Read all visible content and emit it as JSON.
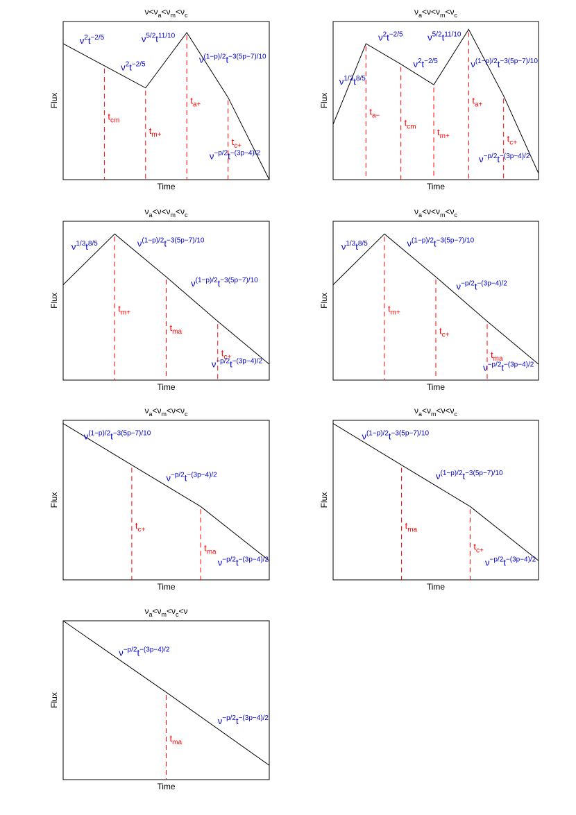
{
  "chart_data": [
    {
      "type": "line",
      "title": {
        "base": [
          "ν<ν",
          "<ν",
          "<ν"
        ],
        "subs": [
          "a",
          "m",
          "c"
        ]
      },
      "xlabel": "Time",
      "ylabel": "Flux",
      "xlim": [
        0,
        1
      ],
      "ylim": [
        0,
        1
      ],
      "x": [
        0,
        0.2,
        0.4,
        0.6,
        0.8,
        1.0
      ],
      "y": [
        0.86,
        0.72,
        0.58,
        0.93,
        0.52,
        0.0
      ],
      "vlines": [
        {
          "x": 0.2,
          "label": "t",
          "sub": "cm",
          "label_y": 0.38
        },
        {
          "x": 0.4,
          "label": "t",
          "sub": "m+",
          "label_y": 0.29
        },
        {
          "x": 0.6,
          "label": "t",
          "sub": "a+",
          "label_y": 0.48
        },
        {
          "x": 0.8,
          "label": "t",
          "sub": "c+",
          "label_y": 0.22
        }
      ],
      "segment_labels": [
        {
          "x": 0.08,
          "y": 0.86,
          "base": "ν",
          "sup1": "2",
          "mid": "t",
          "sup2": "−2/5"
        },
        {
          "x": 0.28,
          "y": 0.69,
          "base": "ν",
          "sup1": "2",
          "mid": "t",
          "sup2": "−2/5"
        },
        {
          "x": 0.38,
          "y": 0.87,
          "base": "ν",
          "sup1": "5/2",
          "mid": "t",
          "sup2": "11/10"
        },
        {
          "x": 0.66,
          "y": 0.74,
          "base": "ν",
          "sup1": "(1−p)/2",
          "mid": "t",
          "sup2": "−3(5p−7)/10"
        },
        {
          "x": 0.71,
          "y": 0.13,
          "base": "ν",
          "sup1": "−p/2",
          "mid": "t",
          "sup2": "−(3p−4)/2"
        }
      ]
    },
    {
      "type": "line",
      "title": {
        "base": [
          "ν",
          "<ν<ν",
          "<ν"
        ],
        "subs": [
          "a",
          "m",
          "c"
        ]
      },
      "xlabel": "Time",
      "ylabel": "Flux",
      "xlim": [
        0,
        1
      ],
      "ylim": [
        0,
        1
      ],
      "x": [
        0,
        0.16,
        0.33,
        0.49,
        0.66,
        0.83,
        1.0
      ],
      "y": [
        0.35,
        0.86,
        0.73,
        0.6,
        0.95,
        0.53,
        0.04
      ],
      "vlines": [
        {
          "x": 0.16,
          "label": "t",
          "sub": "a−",
          "label_y": 0.41
        },
        {
          "x": 0.33,
          "label": "t",
          "sub": "cm",
          "label_y": 0.34
        },
        {
          "x": 0.49,
          "label": "t",
          "sub": "m+",
          "label_y": 0.28
        },
        {
          "x": 0.66,
          "label": "t",
          "sub": "a+",
          "label_y": 0.48
        },
        {
          "x": 0.83,
          "label": "t",
          "sub": "c+",
          "label_y": 0.24
        }
      ],
      "segment_labels": [
        {
          "x": 0.03,
          "y": 0.6,
          "base": "ν",
          "sup1": "1/3",
          "mid": "t",
          "sup2": "8/5"
        },
        {
          "x": 0.22,
          "y": 0.88,
          "base": "ν",
          "sup1": "2",
          "mid": "t",
          "sup2": "−2/5"
        },
        {
          "x": 0.39,
          "y": 0.71,
          "base": "ν",
          "sup1": "2",
          "mid": "t",
          "sup2": "−2/5"
        },
        {
          "x": 0.46,
          "y": 0.88,
          "base": "ν",
          "sup1": "5/2",
          "mid": "t",
          "sup2": "11/10"
        },
        {
          "x": 0.67,
          "y": 0.71,
          "base": "ν",
          "sup1": "(1−p)/2",
          "mid": "t",
          "sup2": "−3(5p−7)/10"
        },
        {
          "x": 0.71,
          "y": 0.11,
          "base": "ν",
          "sup1": "−p/2",
          "mid": "t",
          "sup2": "−(3p−4)/2"
        }
      ]
    },
    {
      "type": "line",
      "title": {
        "base": [
          "ν",
          "<ν<ν",
          "<ν"
        ],
        "subs": [
          "a",
          "m",
          "c"
        ]
      },
      "xlabel": "Time",
      "ylabel": "Flux",
      "xlim": [
        0,
        1
      ],
      "ylim": [
        0,
        1
      ],
      "x": [
        0,
        0.25,
        0.5,
        0.75,
        1.0
      ],
      "y": [
        0.6,
        0.92,
        0.65,
        0.37,
        0.1
      ],
      "vlines": [
        {
          "x": 0.25,
          "label": "t",
          "sub": "m+",
          "label_y": 0.43
        },
        {
          "x": 0.5,
          "label": "t",
          "sub": "ma",
          "label_y": 0.31
        },
        {
          "x": 0.75,
          "label": "t",
          "sub": "c+",
          "label_y": 0.15
        }
      ],
      "segment_labels": [
        {
          "x": 0.04,
          "y": 0.82,
          "base": "ν",
          "sup1": "1/3",
          "mid": "t",
          "sup2": "8/5"
        },
        {
          "x": 0.36,
          "y": 0.84,
          "base": "ν",
          "sup1": "(1−p)/2",
          "mid": "t",
          "sup2": "−3(5p−7)/10"
        },
        {
          "x": 0.62,
          "y": 0.59,
          "base": "ν",
          "sup1": "(1−p)/2",
          "mid": "t",
          "sup2": "−3(5p−7)/10"
        },
        {
          "x": 0.72,
          "y": 0.08,
          "base": "ν",
          "sup1": "−p/2",
          "mid": "t",
          "sup2": "−(3p−4)/2"
        }
      ]
    },
    {
      "type": "line",
      "title": {
        "base": [
          "ν",
          "<ν<ν",
          "<ν"
        ],
        "subs": [
          "a",
          "m",
          "c"
        ]
      },
      "xlabel": "Time",
      "ylabel": "Flux",
      "xlim": [
        0,
        1
      ],
      "ylim": [
        0,
        1
      ],
      "x": [
        0,
        0.25,
        0.5,
        0.75,
        1.0
      ],
      "y": [
        0.6,
        0.92,
        0.65,
        0.37,
        0.1
      ],
      "vlines": [
        {
          "x": 0.25,
          "label": "t",
          "sub": "m+",
          "label_y": 0.43
        },
        {
          "x": 0.5,
          "label": "t",
          "sub": "c+",
          "label_y": 0.29
        },
        {
          "x": 0.75,
          "label": "t",
          "sub": "ma",
          "label_y": 0.14
        }
      ],
      "segment_labels": [
        {
          "x": 0.04,
          "y": 0.82,
          "base": "ν",
          "sup1": "1/3",
          "mid": "t",
          "sup2": "8/5"
        },
        {
          "x": 0.36,
          "y": 0.84,
          "base": "ν",
          "sup1": "(1−p)/2",
          "mid": "t",
          "sup2": "−3(5p−7)/10"
        },
        {
          "x": 0.6,
          "y": 0.57,
          "base": "ν",
          "sup1": "−p/2",
          "mid": "t",
          "sup2": "−(3p−4)/2"
        },
        {
          "x": 0.73,
          "y": 0.06,
          "base": "ν",
          "sup1": "−p/2",
          "mid": "t",
          "sup2": "−(3p−4)/2"
        }
      ]
    },
    {
      "type": "line",
      "title": {
        "base": [
          "ν",
          "<ν",
          "<ν<ν"
        ],
        "subs": [
          "a",
          "m",
          "c"
        ]
      },
      "xlabel": "Time",
      "ylabel": "Flux",
      "xlim": [
        0,
        1
      ],
      "ylim": [
        0,
        1
      ],
      "x": [
        0,
        0.333,
        0.667,
        1.0
      ],
      "y": [
        0.98,
        0.72,
        0.46,
        0.12
      ],
      "vlines": [
        {
          "x": 0.333,
          "label": "t",
          "sub": "c+",
          "label_y": 0.32
        },
        {
          "x": 0.667,
          "label": "t",
          "sub": "ma",
          "label_y": 0.18
        }
      ],
      "segment_labels": [
        {
          "x": 0.1,
          "y": 0.88,
          "base": "ν",
          "sup1": "(1−p)/2",
          "mid": "t",
          "sup2": "−3(5p−7)/10"
        },
        {
          "x": 0.5,
          "y": 0.62,
          "base": "ν",
          "sup1": "−p/2",
          "mid": "t",
          "sup2": "−(3p−4)/2"
        },
        {
          "x": 0.75,
          "y": 0.09,
          "base": "ν",
          "sup1": "−p/2",
          "mid": "t",
          "sup2": "−(3p−4)/2"
        }
      ]
    },
    {
      "type": "line",
      "title": {
        "base": [
          "ν",
          "<ν",
          "<ν<ν"
        ],
        "subs": [
          "a",
          "m",
          "c"
        ]
      },
      "xlabel": "Time",
      "ylabel": "Flux",
      "xlim": [
        0,
        1
      ],
      "ylim": [
        0,
        1
      ],
      "x": [
        0,
        0.333,
        0.667,
        1.0
      ],
      "y": [
        0.98,
        0.72,
        0.46,
        0.12
      ],
      "vlines": [
        {
          "x": 0.333,
          "label": "t",
          "sub": "ma",
          "label_y": 0.32
        },
        {
          "x": 0.667,
          "label": "t",
          "sub": "c+",
          "label_y": 0.19
        }
      ],
      "segment_labels": [
        {
          "x": 0.14,
          "y": 0.88,
          "base": "ν",
          "sup1": "(1−p)/2",
          "mid": "t",
          "sup2": "−3(5p−7)/10"
        },
        {
          "x": 0.5,
          "y": 0.63,
          "base": "ν",
          "sup1": "(1−p)/2",
          "mid": "t",
          "sup2": "−3(5p−7)/10"
        },
        {
          "x": 0.74,
          "y": 0.09,
          "base": "ν",
          "sup1": "−p/2",
          "mid": "t",
          "sup2": "−(3p−4)/2"
        }
      ]
    },
    {
      "type": "line",
      "title": {
        "base": [
          "ν",
          "<ν",
          "<ν",
          "<ν"
        ],
        "subs": [
          "a",
          "m",
          "c"
        ]
      },
      "xlabel": "Time",
      "ylabel": "Flux",
      "xlim": [
        0,
        1
      ],
      "ylim": [
        0,
        1
      ],
      "x": [
        0,
        0.5,
        1.0
      ],
      "y": [
        1.0,
        0.55,
        0.09
      ],
      "vlines": [
        {
          "x": 0.5,
          "label": "t",
          "sub": "ma",
          "label_y": 0.24
        }
      ],
      "segment_labels": [
        {
          "x": 0.27,
          "y": 0.78,
          "base": "ν",
          "sup1": "−p/2",
          "mid": "t",
          "sup2": "−(3p−4)/2"
        },
        {
          "x": 0.75,
          "y": 0.35,
          "base": "ν",
          "sup1": "−p/2",
          "mid": "t",
          "sup2": "−(3p−4)/2"
        }
      ]
    }
  ]
}
